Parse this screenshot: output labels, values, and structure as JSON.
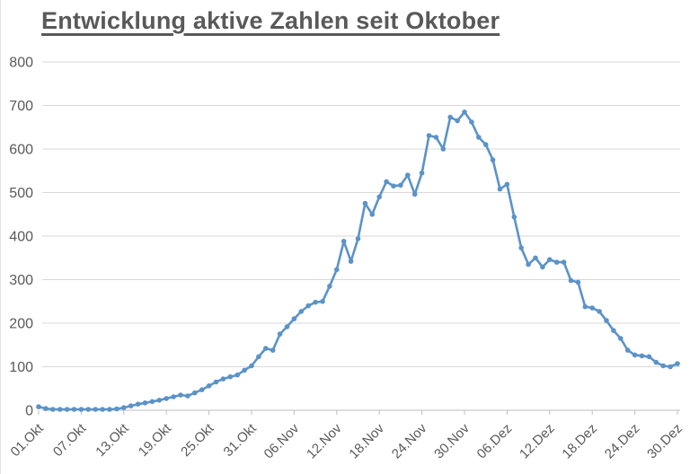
{
  "page": {
    "title": "Entwicklung aktive Zahlen seit Oktober"
  },
  "colors": {
    "line": "#5b93c8",
    "marker": "#5b93c8",
    "grid": "#d9d9d9",
    "axis": "#bfbfbf",
    "tick": "#bfbfbf",
    "label_text": "#595959",
    "title_text": "#595959",
    "background": "#ffffff"
  },
  "chart_data": {
    "type": "line",
    "title": "Entwicklung aktive Zahlen seit Oktober",
    "xlabel": "",
    "ylabel": "",
    "ylim": [
      0,
      800
    ],
    "y_ticks": [
      0,
      100,
      200,
      300,
      400,
      500,
      600,
      700,
      800
    ],
    "grid": "horizontal",
    "legend": "none",
    "marker": "circle",
    "x_tick_every": 6,
    "x_tick_labels": [
      "01.Okt",
      "07.Okt",
      "13.Okt",
      "19.Okt",
      "25.Okt",
      "31.Okt",
      "06.Nov",
      "12.Nov",
      "18.Nov",
      "24.Nov",
      "30.Nov",
      "06.Dez",
      "12.Dez",
      "18.Dez",
      "24.Dez",
      "30.Dez"
    ],
    "x": [
      "01.Okt",
      "02.Okt",
      "03.Okt",
      "04.Okt",
      "05.Okt",
      "06.Okt",
      "07.Okt",
      "08.Okt",
      "09.Okt",
      "10.Okt",
      "11.Okt",
      "12.Okt",
      "13.Okt",
      "14.Okt",
      "15.Okt",
      "16.Okt",
      "17.Okt",
      "18.Okt",
      "19.Okt",
      "20.Okt",
      "21.Okt",
      "22.Okt",
      "23.Okt",
      "24.Okt",
      "25.Okt",
      "26.Okt",
      "27.Okt",
      "28.Okt",
      "29.Okt",
      "30.Okt",
      "31.Okt",
      "01.Nov",
      "02.Nov",
      "03.Nov",
      "04.Nov",
      "05.Nov",
      "06.Nov",
      "07.Nov",
      "08.Nov",
      "09.Nov",
      "10.Nov",
      "11.Nov",
      "12.Nov",
      "13.Nov",
      "14.Nov",
      "15.Nov",
      "16.Nov",
      "17.Nov",
      "18.Nov",
      "19.Nov",
      "20.Nov",
      "21.Nov",
      "22.Nov",
      "23.Nov",
      "24.Nov",
      "25.Nov",
      "26.Nov",
      "27.Nov",
      "28.Nov",
      "29.Nov",
      "30.Nov",
      "01.Dez",
      "02.Dez",
      "03.Dez",
      "04.Dez",
      "05.Dez",
      "06.Dez",
      "07.Dez",
      "08.Dez",
      "09.Dez",
      "10.Dez",
      "11.Dez",
      "12.Dez",
      "13.Dez",
      "14.Dez",
      "15.Dez",
      "16.Dez",
      "17.Dez",
      "18.Dez",
      "19.Dez",
      "20.Dez",
      "21.Dez",
      "22.Dez",
      "23.Dez",
      "24.Dez",
      "25.Dez",
      "26.Dez",
      "27.Dez",
      "28.Dez",
      "29.Dez",
      "30.Dez"
    ],
    "values": [
      8,
      4,
      2,
      2,
      2,
      2,
      2,
      2,
      2,
      2,
      2,
      3,
      6,
      10,
      14,
      17,
      20,
      23,
      27,
      31,
      35,
      33,
      40,
      47,
      56,
      65,
      72,
      77,
      81,
      92,
      102,
      123,
      142,
      138,
      175,
      192,
      210,
      227,
      240,
      248,
      250,
      285,
      323,
      388,
      342,
      394,
      475,
      450,
      490,
      525,
      515,
      517,
      540,
      496,
      545,
      631,
      627,
      600,
      673,
      665,
      685,
      662,
      627,
      610,
      575,
      508,
      519,
      444,
      373,
      335,
      350,
      329,
      346,
      340,
      340,
      298,
      294,
      238,
      235,
      227,
      206,
      183,
      165,
      138,
      127,
      125,
      123,
      110,
      102,
      100,
      107
    ]
  }
}
